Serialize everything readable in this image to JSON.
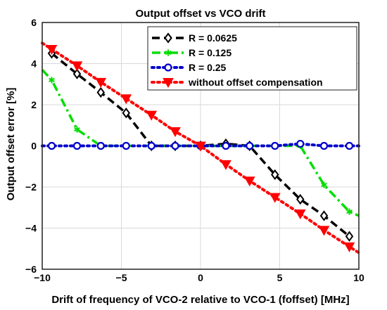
{
  "chart_data": {
    "type": "line",
    "title": "Output offset vs VCO drift",
    "xlabel": "Drift of frequency of VCO-2 relative to VCO-1 (foffset) [MHz]",
    "ylabel": "Output offset error [%]",
    "xlim": [
      -10,
      10
    ],
    "ylim": [
      -6,
      6
    ],
    "xticks": [
      -10,
      -5,
      0,
      5,
      10
    ],
    "yticks": [
      -6,
      -4,
      -2,
      0,
      2,
      4,
      6
    ],
    "grid": true,
    "legend_position": "top-right",
    "series": [
      {
        "name": "R = 0.0625",
        "color": "#000000",
        "line_style": "dash",
        "marker": "diamond",
        "x": [
          -9.4,
          -7.8,
          -6.3,
          -4.7,
          -3.1,
          -1.6,
          0,
          1.6,
          3.1,
          4.7,
          6.3,
          7.8,
          9.4
        ],
        "y": [
          4.5,
          3.5,
          2.6,
          1.6,
          0.0,
          0.0,
          0.0,
          0.1,
          0.0,
          -1.4,
          -2.6,
          -3.4,
          -4.4
        ]
      },
      {
        "name": "R = 0.125",
        "color": "#00dd00",
        "line_style": "dashdot",
        "marker": "star",
        "x": [
          -10,
          -9.4,
          -7.8,
          -6.3,
          -4.7,
          -3.1,
          -1.6,
          0,
          1.6,
          3.1,
          4.7,
          6.3,
          7.8,
          9.4,
          10
        ],
        "y": [
          3.7,
          3.2,
          0.8,
          0.0,
          0.0,
          0.0,
          0.0,
          0.0,
          0.0,
          0.0,
          0.0,
          0.0,
          -1.9,
          -3.2,
          -3.4
        ]
      },
      {
        "name": "R = 0.25",
        "color": "#0000cc",
        "line_style": "dot",
        "marker": "circle",
        "x": [
          -10,
          -9.4,
          -7.8,
          -6.3,
          -4.7,
          -3.1,
          -1.6,
          0,
          1.6,
          3.1,
          4.7,
          6.3,
          7.8,
          9.4,
          10
        ],
        "y": [
          0.0,
          0.0,
          0.0,
          0.0,
          0.0,
          0.0,
          0.0,
          0.0,
          0.0,
          0.0,
          0.0,
          0.1,
          0.0,
          0.0,
          0.0
        ]
      },
      {
        "name": "without offset compensation",
        "color": "#ff0000",
        "line_style": "dot",
        "marker": "triangle-down",
        "x": [
          -10,
          -9.4,
          -7.8,
          -6.3,
          -4.7,
          -3.1,
          -1.6,
          0,
          1.6,
          3.1,
          4.7,
          6.3,
          7.8,
          9.4,
          10
        ],
        "y": [
          5.0,
          4.7,
          3.9,
          3.1,
          2.3,
          1.5,
          0.7,
          0.0,
          -0.9,
          -1.7,
          -2.5,
          -3.3,
          -4.1,
          -4.9,
          -5.2
        ]
      }
    ]
  }
}
